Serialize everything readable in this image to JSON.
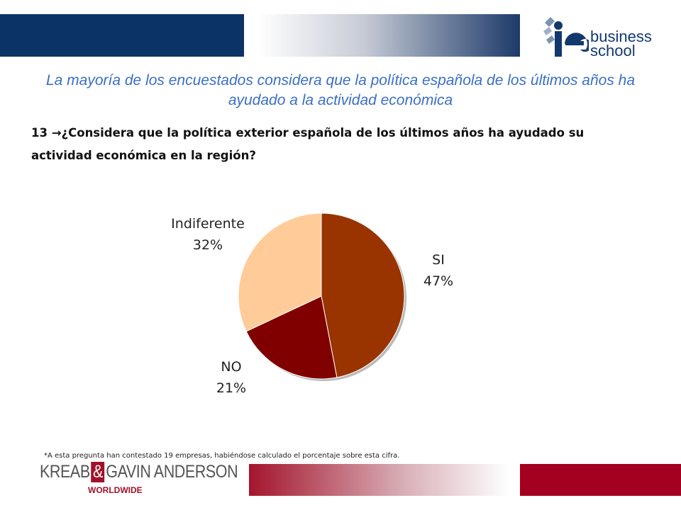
{
  "header": {
    "logo_text": "business school",
    "colors": {
      "navy": "#0b3366",
      "accent_red": "#a4001f"
    }
  },
  "headline": "La mayoría de los encuestados considera que la política española de los últimos años ha ayudado a la actividad económica",
  "question": {
    "number": "13",
    "arrow_icon": "→",
    "text": "¿Considera que la política exterior española de los últimos años ha ayudado su actividad económica en la región?"
  },
  "chart_data": {
    "type": "pie",
    "slices": [
      {
        "label": "SI",
        "value": 47,
        "display": "47%",
        "color": "#993300"
      },
      {
        "label": "NO",
        "value": 21,
        "display": "21%",
        "color": "#800000"
      },
      {
        "label": "Indiferente",
        "value": 32,
        "display": "32%",
        "color": "#ffcc99"
      }
    ],
    "start_angle_deg": 0,
    "direction": "clockwise",
    "legend": "none"
  },
  "footnote": "*A esta pregunta han contestado 19 empresas, habiéndose calculado el porcentaje sobre esta cifra.",
  "footer": {
    "logo_left": "KREAB",
    "logo_amp": "&",
    "logo_right": "GAVIN ANDERSON",
    "logo_sub": "WORLDWIDE"
  }
}
